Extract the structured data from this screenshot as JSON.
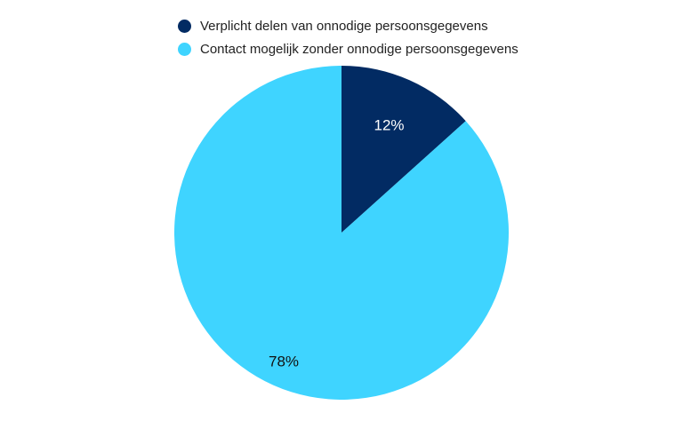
{
  "chart_data": {
    "type": "pie",
    "title": "",
    "legend_position": "top",
    "series": [
      {
        "name": "Verplicht delen van onnodige persoonsgegevens",
        "value": 12,
        "label": "12%",
        "color": "#022b63",
        "label_color": "#ffffff"
      },
      {
        "name": "Contact mogelijk zonder onnodige persoonsgegevens",
        "value": 78,
        "label": "78%",
        "color": "#3fd4ff",
        "label_color": "#111111"
      }
    ]
  }
}
